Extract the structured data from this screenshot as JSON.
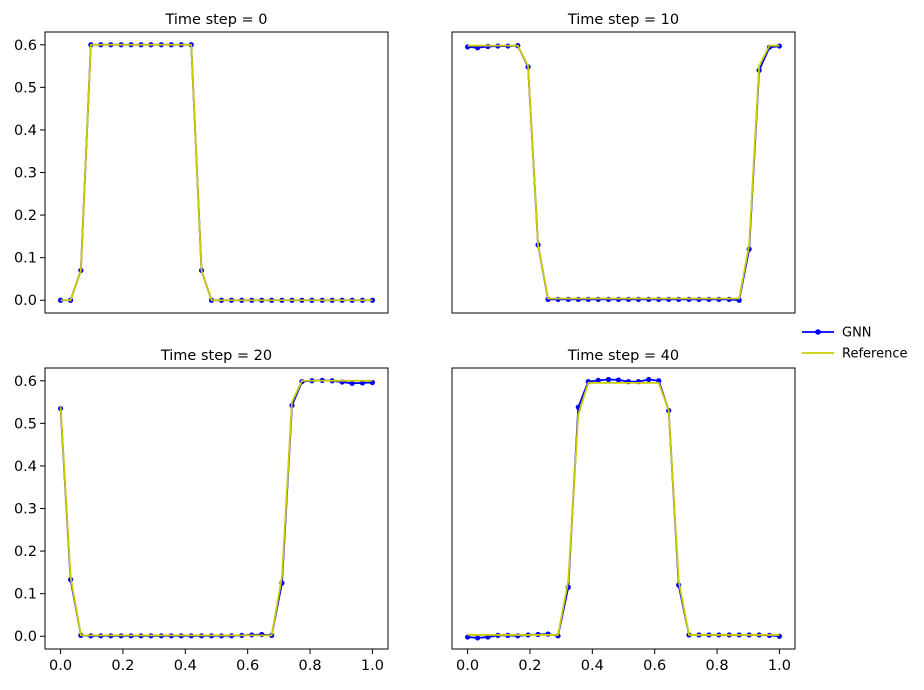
{
  "legend": {
    "gnn_label": "GNN",
    "reference_label": "Reference"
  },
  "colors": {
    "gnn": "#0000ff",
    "reference": "#cccc00",
    "axis": "#000000"
  },
  "chart_data": [
    {
      "type": "line",
      "title": "Time step = 0",
      "xlim": [
        -0.05,
        1.05
      ],
      "ylim": [
        -0.03,
        0.63
      ],
      "show_xticks": false,
      "show_yticks": true,
      "x": [
        0.0,
        0.032,
        0.065,
        0.097,
        0.129,
        0.161,
        0.194,
        0.226,
        0.258,
        0.29,
        0.323,
        0.355,
        0.387,
        0.419,
        0.452,
        0.484,
        0.516,
        0.548,
        0.581,
        0.613,
        0.645,
        0.677,
        0.71,
        0.742,
        0.774,
        0.806,
        0.839,
        0.871,
        0.903,
        0.935,
        0.968,
        1.0
      ],
      "series": [
        {
          "name": "GNN",
          "values": [
            0.0,
            0.0,
            0.07,
            0.6,
            0.6,
            0.6,
            0.6,
            0.6,
            0.6,
            0.6,
            0.6,
            0.6,
            0.6,
            0.6,
            0.07,
            0.0,
            0.0,
            0.0,
            0.0,
            0.0,
            0.0,
            0.0,
            0.0,
            0.0,
            0.0,
            0.0,
            0.0,
            0.0,
            0.0,
            0.0,
            0.0,
            0.0
          ]
        },
        {
          "name": "Reference",
          "values": [
            0.0,
            0.0,
            0.07,
            0.6,
            0.6,
            0.6,
            0.6,
            0.6,
            0.6,
            0.6,
            0.6,
            0.6,
            0.6,
            0.6,
            0.07,
            0.0,
            0.0,
            0.0,
            0.0,
            0.0,
            0.0,
            0.0,
            0.0,
            0.0,
            0.0,
            0.0,
            0.0,
            0.0,
            0.0,
            0.0,
            0.0,
            0.0
          ]
        }
      ]
    },
    {
      "type": "line",
      "title": "Time step = 10",
      "xlim": [
        -0.05,
        1.05
      ],
      "ylim": [
        -0.03,
        0.63
      ],
      "show_xticks": false,
      "show_yticks": false,
      "x": [
        0.0,
        0.032,
        0.065,
        0.097,
        0.129,
        0.161,
        0.194,
        0.226,
        0.258,
        0.29,
        0.323,
        0.355,
        0.387,
        0.419,
        0.452,
        0.484,
        0.516,
        0.548,
        0.581,
        0.613,
        0.645,
        0.677,
        0.71,
        0.742,
        0.774,
        0.806,
        0.839,
        0.871,
        0.903,
        0.935,
        0.968,
        1.0
      ],
      "series": [
        {
          "name": "GNN",
          "values": [
            0.595,
            0.593,
            0.596,
            0.597,
            0.597,
            0.598,
            0.548,
            0.13,
            0.002,
            0.002,
            0.002,
            0.002,
            0.002,
            0.002,
            0.002,
            0.002,
            0.002,
            0.002,
            0.002,
            0.002,
            0.002,
            0.002,
            0.002,
            0.002,
            0.002,
            0.002,
            0.002,
            0.0,
            0.12,
            0.54,
            0.594,
            0.597
          ]
        },
        {
          "name": "Reference",
          "values": [
            0.598,
            0.598,
            0.598,
            0.598,
            0.598,
            0.598,
            0.55,
            0.13,
            0.004,
            0.004,
            0.004,
            0.004,
            0.004,
            0.004,
            0.004,
            0.004,
            0.004,
            0.004,
            0.004,
            0.004,
            0.004,
            0.004,
            0.004,
            0.004,
            0.004,
            0.004,
            0.004,
            0.004,
            0.13,
            0.55,
            0.598,
            0.598
          ]
        }
      ]
    },
    {
      "type": "line",
      "title": "Time step = 20",
      "xlim": [
        -0.05,
        1.05
      ],
      "ylim": [
        -0.03,
        0.63
      ],
      "show_xticks": true,
      "show_yticks": true,
      "x": [
        0.0,
        0.032,
        0.065,
        0.097,
        0.129,
        0.161,
        0.194,
        0.226,
        0.258,
        0.29,
        0.323,
        0.355,
        0.387,
        0.419,
        0.452,
        0.484,
        0.516,
        0.548,
        0.581,
        0.613,
        0.645,
        0.677,
        0.71,
        0.742,
        0.774,
        0.806,
        0.839,
        0.871,
        0.903,
        0.935,
        0.968,
        1.0
      ],
      "series": [
        {
          "name": "GNN",
          "values": [
            0.535,
            0.133,
            0.002,
            0.001,
            0.001,
            0.001,
            0.001,
            0.001,
            0.001,
            0.001,
            0.001,
            0.001,
            0.001,
            0.001,
            0.001,
            0.001,
            0.001,
            0.001,
            0.002,
            0.003,
            0.004,
            0.002,
            0.125,
            0.542,
            0.598,
            0.6,
            0.601,
            0.6,
            0.597,
            0.594,
            0.595,
            0.596
          ]
        },
        {
          "name": "Reference",
          "values": [
            0.54,
            0.14,
            0.002,
            0.002,
            0.002,
            0.002,
            0.002,
            0.002,
            0.002,
            0.002,
            0.002,
            0.002,
            0.002,
            0.002,
            0.002,
            0.002,
            0.002,
            0.002,
            0.002,
            0.002,
            0.002,
            0.002,
            0.14,
            0.55,
            0.6,
            0.6,
            0.6,
            0.6,
            0.6,
            0.6,
            0.6,
            0.6
          ]
        }
      ]
    },
    {
      "type": "line",
      "title": "Time step = 40",
      "xlim": [
        -0.05,
        1.05
      ],
      "ylim": [
        -0.03,
        0.63
      ],
      "show_xticks": true,
      "show_yticks": false,
      "x": [
        0.0,
        0.032,
        0.065,
        0.097,
        0.129,
        0.161,
        0.194,
        0.226,
        0.258,
        0.29,
        0.323,
        0.355,
        0.387,
        0.419,
        0.452,
        0.484,
        0.516,
        0.548,
        0.581,
        0.613,
        0.645,
        0.677,
        0.71,
        0.742,
        0.774,
        0.806,
        0.839,
        0.871,
        0.903,
        0.935,
        0.968,
        1.0
      ],
      "series": [
        {
          "name": "GNN",
          "values": [
            -0.002,
            -0.004,
            -0.002,
            0.002,
            0.002,
            0.001,
            0.003,
            0.004,
            0.005,
            0.001,
            0.115,
            0.538,
            0.598,
            0.601,
            0.603,
            0.602,
            0.598,
            0.598,
            0.603,
            0.6,
            0.53,
            0.12,
            0.003,
            0.003,
            0.003,
            0.003,
            0.003,
            0.003,
            0.003,
            0.003,
            0.002,
            0.0
          ]
        },
        {
          "name": "Reference",
          "values": [
            0.003,
            0.003,
            0.003,
            0.003,
            0.003,
            0.003,
            0.003,
            0.003,
            0.003,
            0.003,
            0.13,
            0.52,
            0.595,
            0.595,
            0.595,
            0.595,
            0.595,
            0.595,
            0.595,
            0.595,
            0.53,
            0.13,
            0.003,
            0.003,
            0.003,
            0.003,
            0.003,
            0.003,
            0.003,
            0.003,
            0.003,
            0.003
          ]
        }
      ]
    }
  ],
  "yticks": [
    0.0,
    0.1,
    0.2,
    0.3,
    0.4,
    0.5,
    0.6
  ],
  "ytick_labels": [
    "0.0",
    "0.1",
    "0.2",
    "0.3",
    "0.4",
    "0.5",
    "0.6"
  ],
  "xticks": [
    0.0,
    0.2,
    0.4,
    0.6,
    0.8,
    1.0
  ],
  "xtick_labels": [
    "0.0",
    "0.2",
    "0.4",
    "0.6",
    "0.8",
    "1.0"
  ]
}
